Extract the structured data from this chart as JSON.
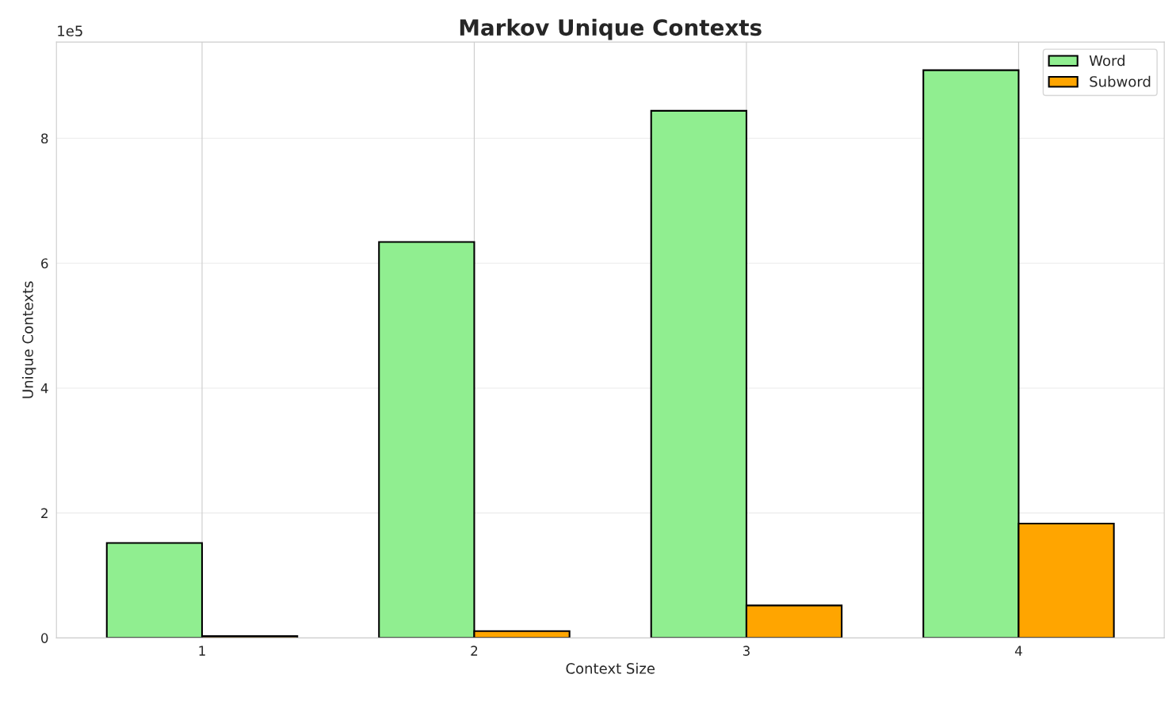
{
  "chart_data": {
    "type": "bar",
    "title": "Markov Unique Contexts",
    "xlabel": "Context Size",
    "ylabel": "Unique Contexts",
    "categories": [
      "1",
      "2",
      "3",
      "4"
    ],
    "series": [
      {
        "name": "Word",
        "color": "#90ee90",
        "values": [
          1.52,
          6.34,
          8.44,
          9.09
        ]
      },
      {
        "name": "Subword",
        "color": "#ffa500",
        "values": [
          0.03,
          0.11,
          0.52,
          1.83
        ]
      }
    ],
    "ylim": [
      0,
      9.54
    ],
    "yticks": [
      0,
      2,
      4,
      6,
      8
    ],
    "annotations": [
      "1e5"
    ],
    "grid": true,
    "legend": "top right"
  }
}
